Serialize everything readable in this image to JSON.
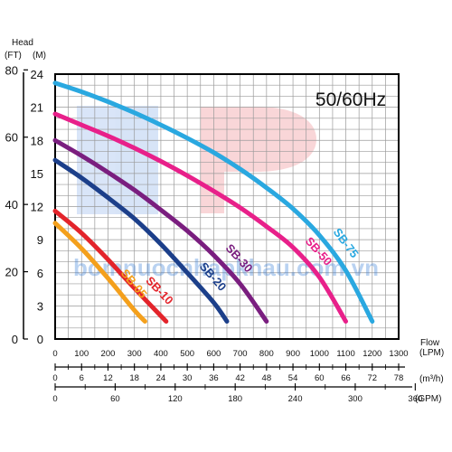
{
  "chart_data": {
    "type": "line",
    "frequency_label": "50/60Hz",
    "watermark_text": "bomnuocnhapkhau.com.vn",
    "y_title_top": "Head",
    "y_unit_ft": "(FT)",
    "y_unit_m": "(M)",
    "y_ticks_m": [
      "0",
      "3",
      "6",
      "9",
      "12",
      "15",
      "18",
      "21",
      "24"
    ],
    "y_ticks_ft": [
      "0",
      "20",
      "40",
      "60",
      "80"
    ],
    "x_title_top": "Flow",
    "x_unit_lpm": "(LPM)",
    "x_unit_m3h": "(m³/h)",
    "x_unit_gpm": "(GPM)",
    "x_ticks_lpm": [
      "0",
      "100",
      "200",
      "300",
      "400",
      "500",
      "600",
      "700",
      "800",
      "900",
      "1000",
      "1100",
      "1200",
      "1300"
    ],
    "x_ticks_m3h": [
      "0",
      "6",
      "12",
      "18",
      "24",
      "30",
      "36",
      "42",
      "48",
      "54",
      "60",
      "66",
      "72",
      "78"
    ],
    "x_ticks_gpm": [
      "0",
      "60",
      "120",
      "180",
      "240",
      "300",
      "360"
    ],
    "ylim": [
      0,
      24
    ],
    "xlim": [
      0,
      1300
    ],
    "grid": true,
    "series": [
      {
        "name": "SB-05",
        "color": "#f4a01c",
        "x": [
          0,
          100,
          200,
          300,
          340
        ],
        "y": [
          10.5,
          8.2,
          5.5,
          2.6,
          1.6
        ]
      },
      {
        "name": "SB-10",
        "color": "#e3242b",
        "x": [
          0,
          100,
          200,
          300,
          400,
          420
        ],
        "y": [
          11.6,
          9.6,
          7.2,
          4.6,
          2.1,
          1.6
        ]
      },
      {
        "name": "SB-20",
        "color": "#1c3f8a",
        "x": [
          0,
          100,
          200,
          300,
          400,
          500,
          600,
          650
        ],
        "y": [
          16.2,
          14.6,
          12.8,
          10.9,
          8.6,
          6.0,
          3.3,
          1.6
        ]
      },
      {
        "name": "SB-30",
        "color": "#7a1e7f",
        "x": [
          0,
          100,
          200,
          300,
          400,
          500,
          600,
          700,
          800
        ],
        "y": [
          18.0,
          16.6,
          15.1,
          13.5,
          11.7,
          9.8,
          7.6,
          5.0,
          1.6
        ]
      },
      {
        "name": "SB-50",
        "color": "#e8208a",
        "x": [
          0,
          100,
          200,
          300,
          400,
          500,
          600,
          700,
          800,
          900,
          1000,
          1100
        ],
        "y": [
          20.4,
          19.4,
          18.4,
          17.3,
          16.1,
          14.8,
          13.4,
          11.9,
          10.2,
          8.3,
          5.6,
          1.6
        ]
      },
      {
        "name": "SB-75",
        "color": "#2aa8e0",
        "x": [
          0,
          100,
          200,
          300,
          400,
          500,
          600,
          700,
          800,
          900,
          1000,
          1100,
          1200
        ],
        "y": [
          23.2,
          22.4,
          21.5,
          20.5,
          19.4,
          18.2,
          16.9,
          15.4,
          13.7,
          11.8,
          9.4,
          6.2,
          1.6
        ]
      }
    ]
  }
}
